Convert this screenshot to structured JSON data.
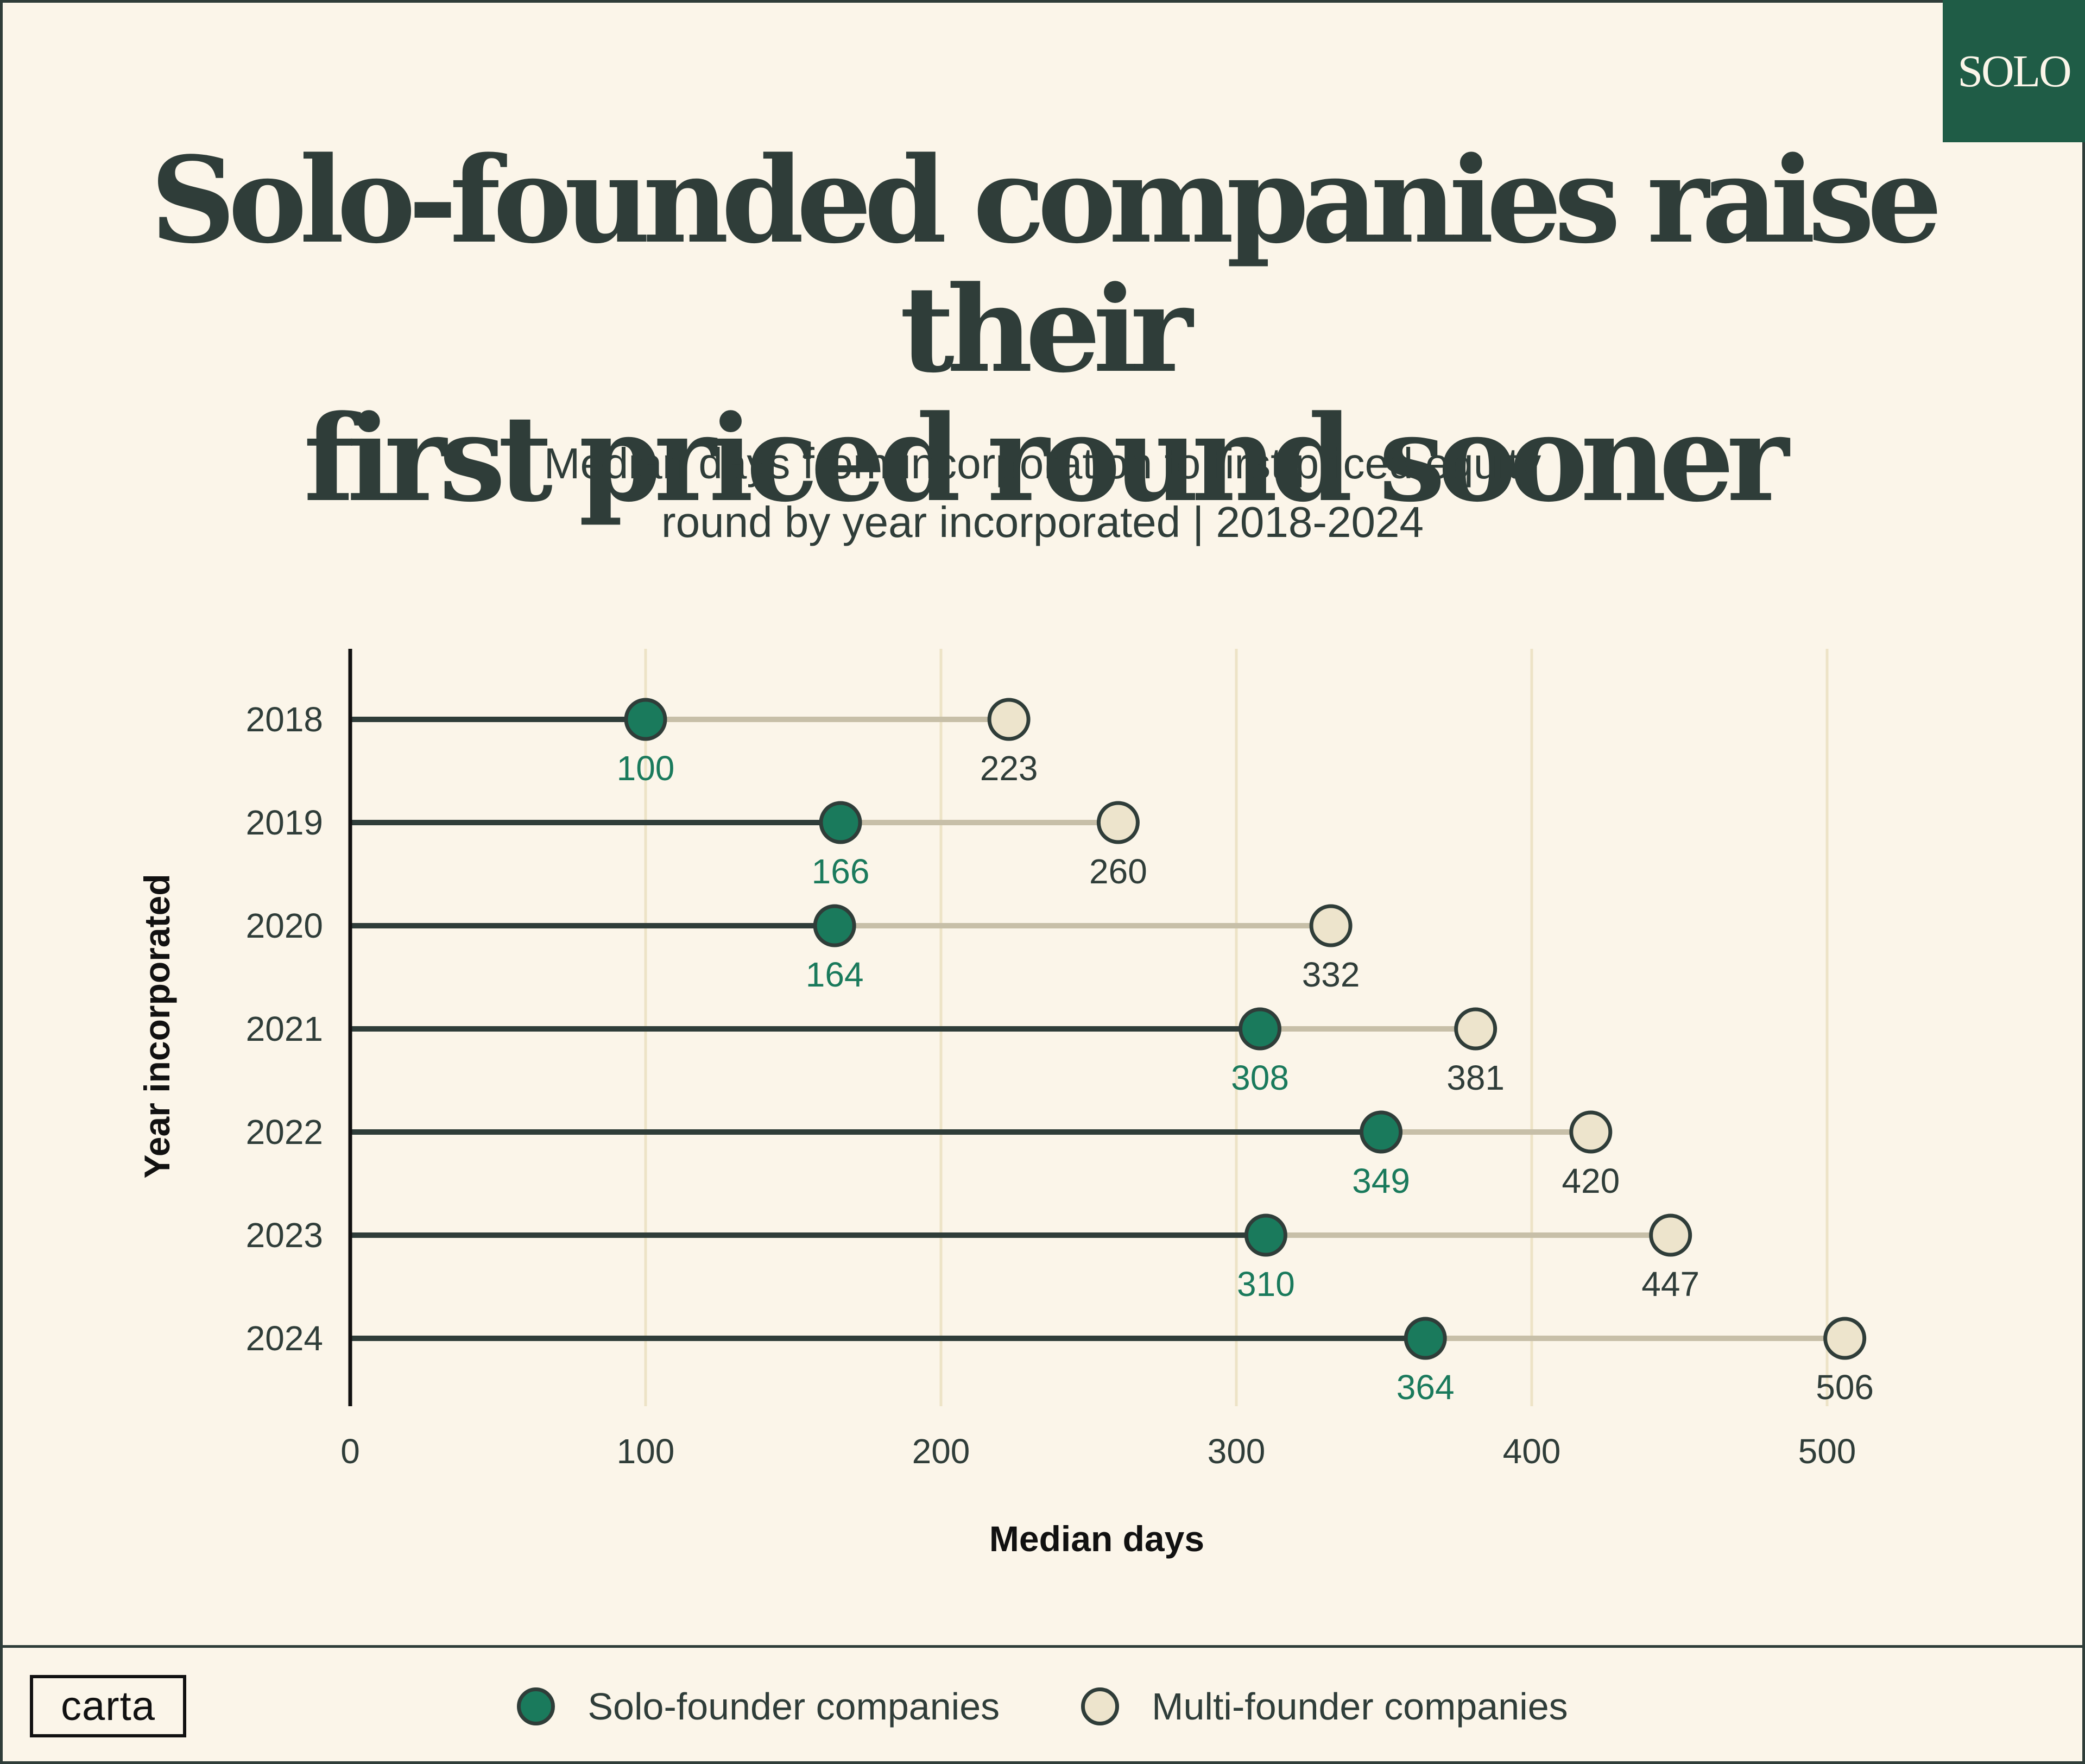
{
  "badge": "SOLO",
  "title_lines": [
    "Solo-founded companies raise their",
    "first priced round sooner"
  ],
  "subtitle_lines": [
    "Median days from incorporation to first priced equity",
    "round by year incorporated | 2018-2024"
  ],
  "brand": "carta",
  "colors": {
    "background": "#fbf5e9",
    "ink": "#2f3d39",
    "solo": "#1a7a5c",
    "multi": "#ede4cc",
    "connector": "#c7bfa8",
    "grid": "#ede3c6",
    "badge": "#1f5c46"
  },
  "chart_data": {
    "type": "dumbbell",
    "xlabel": "Median days",
    "ylabel": "Year incorporated",
    "xlim": [
      0,
      500
    ],
    "xticks": [
      0,
      100,
      200,
      300,
      400,
      500
    ],
    "categories": [
      "2018",
      "2019",
      "2020",
      "2021",
      "2022",
      "2023",
      "2024"
    ],
    "series": [
      {
        "name": "Solo-founder companies",
        "values": [
          100,
          166,
          164,
          308,
          349,
          310,
          364
        ]
      },
      {
        "name": "Multi-founder companies",
        "values": [
          223,
          260,
          332,
          381,
          420,
          447,
          506
        ]
      }
    ]
  },
  "legend": [
    {
      "label": "Solo-founder companies",
      "key": "solo"
    },
    {
      "label": "Multi-founder companies",
      "key": "multi"
    }
  ]
}
